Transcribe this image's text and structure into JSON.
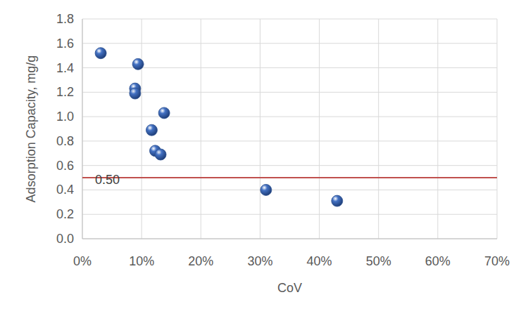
{
  "chart_data": {
    "type": "scatter",
    "xlabel": "CoV",
    "ylabel": "Adsorption Capacity, mg/g",
    "x": [
      3.1,
      9.4,
      8.9,
      8.9,
      13.8,
      11.7,
      12.3,
      13.2,
      31.0,
      43.0
    ],
    "values": [
      1.52,
      1.43,
      1.23,
      1.19,
      1.03,
      0.89,
      0.72,
      0.69,
      0.4,
      0.31
    ],
    "color": "#4472c4",
    "marker": "circle",
    "xlim": [
      0,
      70
    ],
    "xticks": [
      {
        "value": 0,
        "label": "0%"
      },
      {
        "value": 10,
        "label": "10%"
      },
      {
        "value": 20,
        "label": "20%"
      },
      {
        "value": 30,
        "label": "30%"
      },
      {
        "value": 40,
        "label": "40%"
      },
      {
        "value": 50,
        "label": "50%"
      },
      {
        "value": 60,
        "label": "60%"
      },
      {
        "value": 70,
        "label": "70%"
      }
    ],
    "ylim": [
      0,
      1.8
    ],
    "yticks": [
      {
        "value": 0,
        "label": "0.0"
      },
      {
        "value": 0.2,
        "label": "0.2"
      },
      {
        "value": 0.4,
        "label": "0.4"
      },
      {
        "value": 0.6,
        "label": "0.6"
      },
      {
        "value": 0.8,
        "label": "0.8"
      },
      {
        "value": 1.0,
        "label": "1.0"
      },
      {
        "value": 1.2,
        "label": "1.2"
      },
      {
        "value": 1.4,
        "label": "1.4"
      },
      {
        "value": 1.6,
        "label": "1.6"
      },
      {
        "value": 1.8,
        "label": "1.8"
      }
    ],
    "grid": true,
    "annotations": [
      {
        "text": "0.50",
        "y": 0.5,
        "color": "#c0504d"
      }
    ]
  }
}
